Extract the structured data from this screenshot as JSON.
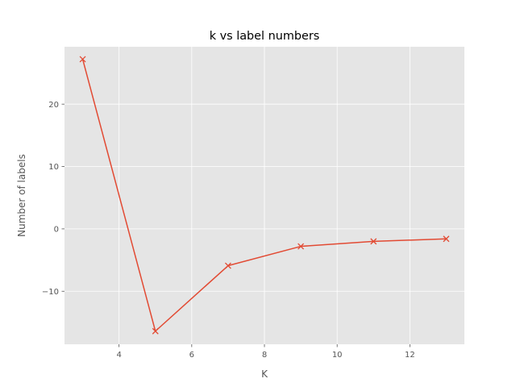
{
  "chart_data": {
    "type": "line",
    "title": "k vs label numbers",
    "xlabel": "K",
    "ylabel": "Number of labels",
    "xlim": [
      2.5,
      13.5
    ],
    "ylim": [
      -18.5,
      29.2
    ],
    "xticks": [
      4,
      6,
      8,
      10,
      12
    ],
    "yticks": [
      -10,
      0,
      10,
      20
    ],
    "grid": true,
    "series": [
      {
        "x": [
          3,
          5,
          7,
          9,
          11,
          13
        ],
        "y": [
          27.2,
          -16.4,
          -5.9,
          -2.8,
          -2.0,
          -1.6
        ],
        "marker": "x",
        "color": "#E24A33"
      }
    ],
    "style": {
      "plot_background": "#E5E5E5",
      "grid_color": "#FFFFFF"
    }
  }
}
